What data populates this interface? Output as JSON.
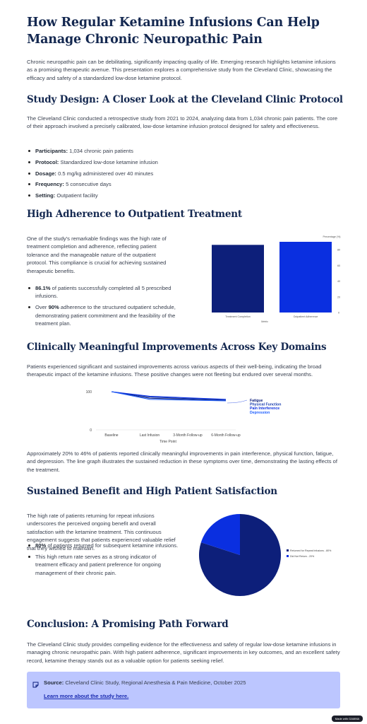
{
  "title": "How Regular Ketamine Infusions Can Help Manage Chronic Neuropathic Pain",
  "intro": "Chronic neuropathic pain can be debilitating, significantly impacting quality of life. Emerging research highlights ketamine infusions as a promising therapeutic avenue. This presentation explores a comprehensive study from the Cleveland Clinic, showcasing the efficacy and safety of a standardized low-dose ketamine protocol.",
  "study_design": {
    "heading": "Study Design: A Closer Look at the Cleveland Clinic Protocol",
    "text": "The Cleveland Clinic conducted a retrospective study from 2021 to 2024, analyzing data from 1,034 chronic pain patients. The core of their approach involved a precisely calibrated, low-dose ketamine infusion protocol designed for safety and effectiveness.",
    "items": [
      {
        "label": "Participants:",
        "value": "1,034 chronic pain patients"
      },
      {
        "label": "Protocol:",
        "value": "Standardized low-dose ketamine infusion"
      },
      {
        "label": "Dosage:",
        "value": "0.5 mg/kg administered over 40 minutes"
      },
      {
        "label": "Frequency:",
        "value": "5 consecutive days"
      },
      {
        "label": "Setting:",
        "value": "Outpatient facility"
      }
    ]
  },
  "adherence": {
    "heading": "High Adherence to Outpatient Treatment",
    "text": "One of the study's remarkable findings was the high rate of treatment completion and adherence, reflecting patient tolerance and the manageable nature of the outpatient protocol. This compliance is crucial for achieving sustained therapeutic benefits.",
    "bullet1_bold": "86.1%",
    "bullet1_rest": " of patients successfully completed all 5 prescribed infusions.",
    "bullet2_pre": "Over ",
    "bullet2_bold": "90%",
    "bullet2_rest": " adherence to the structured outpatient schedule, demonstrating patient commitment and the feasibility of the treatment plan."
  },
  "improvements": {
    "heading": "Clinically Meaningful Improvements Across Key Domains",
    "text": "Patients experienced significant and sustained improvements across various aspects of their well-being, indicating the broad therapeutic impact of the ketamine infusions. These positive changes were not fleeting but endured over several months.",
    "after": "Approximately 20% to 46% of patients reported clinically meaningful improvements in pain interference, physical function, fatigue, and depression. The line graph illustrates the sustained reduction in these symptoms over time, demonstrating the lasting effects of the treatment."
  },
  "satisfaction": {
    "heading": "Sustained Benefit and High Patient Satisfaction",
    "text": "The high rate of patients returning for repeat infusions underscores the perceived ongoing benefit and overall satisfaction with the ketamine treatment. This continuous engagement suggests that patients experienced valuable relief that they wished to maintain.",
    "bullet1_bold": "80%",
    "bullet1_rest": " of patients returned for subsequent ketamine infusions.",
    "bullet2": "This high return rate serves as a strong indicator of treatment efficacy and patient preference for ongoing management of their chronic pain."
  },
  "conclusion": {
    "heading": "Conclusion: A Promising Path Forward",
    "text": "The Cleveland Clinic study provides compelling evidence for the effectiveness and safety of regular low-dose ketamine infusions in managing chronic neuropathic pain. With high patient adherence, significant improvements in key outcomes, and an excellent safety record, ketamine therapy stands out as a valuable option for patients seeking relief."
  },
  "source": {
    "label": "Source:",
    "text": "Cleveland Clinic Study, Regional Anesthesia & Pain Medicine, October 2025",
    "link": "Learn more about the study here."
  },
  "badge": "Made with GAMMA",
  "colors": {
    "heading": "#142850",
    "navy": "#0d1f7a",
    "blue": "#0a2fe0",
    "source_bg": "#bcc6ff"
  },
  "chart_data": [
    {
      "type": "bar",
      "categories": [
        "Treatment Completion",
        "Outpatient Adherence"
      ],
      "values": [
        86.1,
        90
      ],
      "xlabel": "Metric",
      "ylabel": "Percentage (%)",
      "ylim": [
        0,
        90
      ],
      "yticks": [
        "0",
        "20",
        "40",
        "60",
        "80"
      ],
      "colors": [
        "#0d1f7a",
        "#0a2fe0"
      ]
    },
    {
      "type": "line",
      "categories": [
        "Baseline",
        "Last Infusion",
        "3-Month Follow-up",
        "6-Month Follow-up"
      ],
      "xlabel": "Time Point",
      "ylim": [
        0,
        100
      ],
      "yticks": [
        "0",
        "100"
      ],
      "series": [
        {
          "name": "Fatigue",
          "values": [
            100,
            83,
            80,
            77
          ],
          "color": "#0d1f7a"
        },
        {
          "name": "Physical Function",
          "values": [
            100,
            86,
            82,
            79
          ],
          "color": "#1b3fb0"
        },
        {
          "name": "Pain Interference",
          "values": [
            100,
            88,
            84,
            80
          ],
          "color": "#0a2fe0"
        },
        {
          "name": "Depression",
          "values": [
            100,
            80,
            78,
            76
          ],
          "color": "#2060ff"
        }
      ]
    },
    {
      "type": "pie",
      "labels": [
        "Returned for Repeat Infusions - 80%",
        "Did Not Return - 20%"
      ],
      "values": [
        80,
        20
      ],
      "colors": [
        "#0d1f7a",
        "#0a2fe0"
      ]
    }
  ]
}
